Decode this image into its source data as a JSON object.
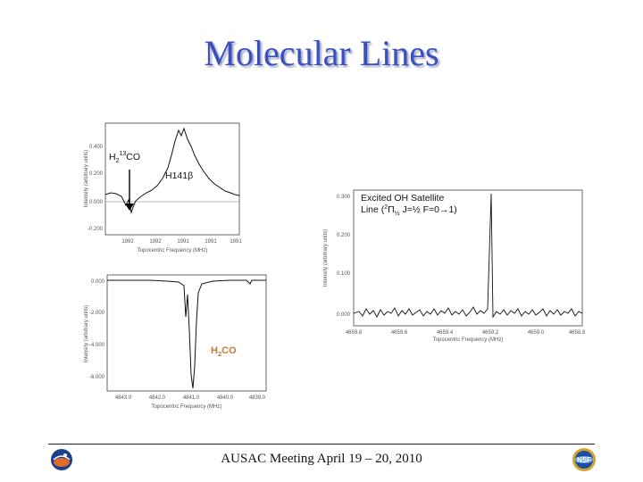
{
  "slide": {
    "title": "Molecular Lines",
    "footer": "AUSAC Meeting April 19 – 20, 2010"
  },
  "panels": {
    "top_left": {
      "label_main": "H",
      "label_sub": "2",
      "label_sup": "13",
      "label_tail": "CO",
      "label2": "H141β",
      "y_ticks": [
        "0.400",
        "0.200",
        "0.000",
        "-0.200"
      ],
      "x_ticks": [
        "1992",
        "1992",
        "1991",
        "1991",
        "1991"
      ],
      "xlabel": "Topocentric Frequency (MHz)",
      "ylabel": "Intensity (arbitrary units)"
    },
    "bottom_left": {
      "label_main": "H",
      "label_sub": "2",
      "label_tail": "CO",
      "y_ticks": [
        "0.000",
        "-2.000",
        "-4.000",
        "-6.000"
      ],
      "x_ticks": [
        "4843.0",
        "4842.0",
        "4841.0",
        "4840.0",
        "4839.0"
      ],
      "xlabel": "Topocentric Frequency (MHz)",
      "ylabel": "Intensity (arbitrary units)"
    },
    "right": {
      "label_line1": "Excited OH Satellite",
      "label_line2_a": "Line (",
      "label_line2_sup": "2",
      "label_line2_b": "Π",
      "label_line2_sub": "½",
      "label_line2_c": " J=½ F=0→1)",
      "y_ticks": [
        "0.300",
        "0.200",
        "0.100",
        "0.000"
      ],
      "x_ticks": [
        "4659.8",
        "4659.6",
        "4659.4",
        "4659.2",
        "4659.0",
        "4658.8"
      ],
      "xlabel": "Topocentric Frequency (MHz)",
      "ylabel": "Intensity (arbitrary units)"
    }
  },
  "logos": {
    "left": "NRAO",
    "right": "NSF"
  }
}
